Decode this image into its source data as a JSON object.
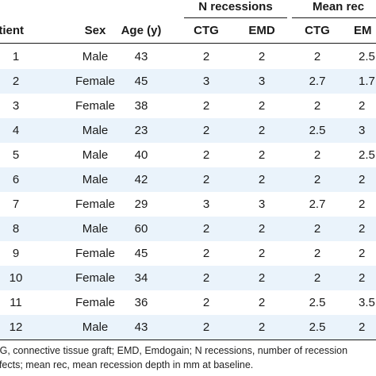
{
  "table": {
    "group_headers": {
      "n_recessions": "N recessions",
      "mean_rec": "Mean rec"
    },
    "columns": [
      "atient",
      "Sex",
      "Age (y)",
      "CTG",
      "EMD",
      "CTG",
      "EM"
    ],
    "rows": [
      [
        "1",
        "Male",
        "43",
        "2",
        "2",
        "2",
        "2.5"
      ],
      [
        "2",
        "Female",
        "45",
        "3",
        "3",
        "2.7",
        "1.7"
      ],
      [
        "3",
        "Female",
        "38",
        "2",
        "2",
        "2",
        "2"
      ],
      [
        "4",
        "Male",
        "23",
        "2",
        "2",
        "2.5",
        "3"
      ],
      [
        "5",
        "Male",
        "40",
        "2",
        "2",
        "2",
        "2.5"
      ],
      [
        "6",
        "Male",
        "42",
        "2",
        "2",
        "2",
        "2"
      ],
      [
        "7",
        "Female",
        "29",
        "3",
        "3",
        "2.7",
        "2"
      ],
      [
        "8",
        "Male",
        "60",
        "2",
        "2",
        "2",
        "2"
      ],
      [
        "9",
        "Female",
        "45",
        "2",
        "2",
        "2",
        "2"
      ],
      [
        "10",
        "Female",
        "34",
        "2",
        "2",
        "2",
        "2"
      ],
      [
        "11",
        "Female",
        "36",
        "2",
        "2",
        "2.5",
        "3.5"
      ],
      [
        "12",
        "Male",
        "43",
        "2",
        "2",
        "2.5",
        "2"
      ]
    ]
  },
  "footnote": {
    "line1": "TG, connective tissue graft; EMD, Emdogain; N recessions, number of recession",
    "line2": "efects; mean rec, mean recession depth in mm at baseline."
  }
}
